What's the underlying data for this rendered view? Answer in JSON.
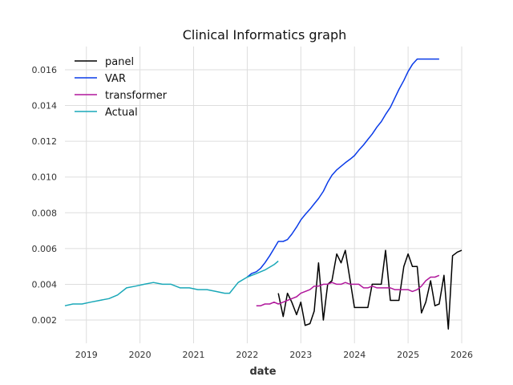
{
  "chart_data": {
    "type": "line",
    "title": "Clinical Informatics graph",
    "xlabel": "date",
    "ylabel": "",
    "x_axis": "date",
    "xlim": [
      2018.6,
      2026.0
    ],
    "ylim": [
      0.0007,
      0.0173
    ],
    "xticks": [
      "2019",
      "2020",
      "2021",
      "2022",
      "2023",
      "2024",
      "2025",
      "2026"
    ],
    "yticks": [
      "0.002",
      "0.004",
      "0.006",
      "0.008",
      "0.010",
      "0.012",
      "0.014",
      "0.016"
    ],
    "grid": true,
    "legend_placement": "top-left",
    "series": [
      {
        "name": "panel",
        "color": "#000000",
        "x": [
          2022.58,
          2022.67,
          2022.75,
          2022.83,
          2022.92,
          2023.0,
          2023.08,
          2023.17,
          2023.25,
          2023.33,
          2023.42,
          2023.5,
          2023.58,
          2023.67,
          2023.75,
          2023.83,
          2023.92,
          2024.0,
          2024.08,
          2024.17,
          2024.25,
          2024.33,
          2024.42,
          2024.5,
          2024.58,
          2024.67,
          2024.75,
          2024.83,
          2024.92,
          2025.0,
          2025.08,
          2025.17,
          2025.25,
          2025.33,
          2025.42,
          2025.5,
          2025.58,
          2025.67,
          2025.75,
          2025.83,
          2025.92,
          2026.0
        ],
        "y": [
          0.0035,
          0.0022,
          0.0035,
          0.003,
          0.0023,
          0.003,
          0.0017,
          0.0018,
          0.0025,
          0.0052,
          0.002,
          0.004,
          0.0042,
          0.0057,
          0.0052,
          0.0059,
          0.0042,
          0.0027,
          0.0027,
          0.0027,
          0.0027,
          0.004,
          0.004,
          0.004,
          0.0059,
          0.0031,
          0.0031,
          0.0031,
          0.005,
          0.0057,
          0.005,
          0.005,
          0.0024,
          0.003,
          0.0042,
          0.0028,
          0.0029,
          0.0045,
          0.0015,
          0.0056,
          0.0058,
          0.0059
        ]
      },
      {
        "name": "VAR",
        "color": "#0a3be8",
        "x": [
          2022.0,
          2022.08,
          2022.17,
          2022.25,
          2022.33,
          2022.42,
          2022.5,
          2022.58,
          2022.67,
          2022.75,
          2022.83,
          2022.92,
          2023.0,
          2023.08,
          2023.17,
          2023.25,
          2023.33,
          2023.42,
          2023.5,
          2023.58,
          2023.67,
          2023.75,
          2023.83,
          2023.92,
          2024.0,
          2024.08,
          2024.17,
          2024.25,
          2024.33,
          2024.42,
          2024.5,
          2024.58,
          2024.67,
          2024.75,
          2024.83,
          2024.92,
          2025.0,
          2025.08,
          2025.17,
          2025.25,
          2025.33,
          2025.42,
          2025.5,
          2025.58
        ],
        "y": [
          0.0044,
          0.0046,
          0.0047,
          0.0049,
          0.0052,
          0.0056,
          0.006,
          0.0064,
          0.0064,
          0.0065,
          0.0068,
          0.0072,
          0.0076,
          0.0079,
          0.0082,
          0.0085,
          0.0088,
          0.0092,
          0.0097,
          0.0101,
          0.0104,
          0.0106,
          0.0108,
          0.011,
          0.0112,
          0.0115,
          0.0118,
          0.0121,
          0.0124,
          0.0128,
          0.0131,
          0.0135,
          0.0139,
          0.0144,
          0.0149,
          0.0154,
          0.0159,
          0.0163,
          0.0166,
          0.0166,
          0.0166,
          0.0166,
          0.0166,
          0.0166
        ]
      },
      {
        "name": "transformer",
        "color": "#b0179b",
        "x": [
          2022.17,
          2022.25,
          2022.33,
          2022.42,
          2022.5,
          2022.58,
          2022.67,
          2022.75,
          2022.83,
          2022.92,
          2023.0,
          2023.08,
          2023.17,
          2023.25,
          2023.33,
          2023.42,
          2023.5,
          2023.58,
          2023.67,
          2023.75,
          2023.83,
          2023.92,
          2024.0,
          2024.08,
          2024.17,
          2024.25,
          2024.33,
          2024.42,
          2024.5,
          2024.58,
          2024.67,
          2024.75,
          2024.83,
          2024.92,
          2025.0,
          2025.08,
          2025.17,
          2025.25,
          2025.33,
          2025.42,
          2025.5,
          2025.58
        ],
        "y": [
          0.0028,
          0.0028,
          0.0029,
          0.0029,
          0.003,
          0.0029,
          0.003,
          0.0031,
          0.0032,
          0.0033,
          0.0035,
          0.0036,
          0.0037,
          0.0039,
          0.0039,
          0.004,
          0.004,
          0.0041,
          0.004,
          0.004,
          0.0041,
          0.004,
          0.004,
          0.004,
          0.0038,
          0.0038,
          0.0039,
          0.0038,
          0.0038,
          0.0038,
          0.0038,
          0.0037,
          0.0037,
          0.0037,
          0.0037,
          0.0036,
          0.0037,
          0.0039,
          0.0042,
          0.0044,
          0.0044,
          0.0045
        ]
      },
      {
        "name": "Actual",
        "color": "#1aa8b8",
        "x": [
          2018.6,
          2018.75,
          2018.92,
          2019.08,
          2019.25,
          2019.42,
          2019.58,
          2019.75,
          2019.92,
          2020.08,
          2020.25,
          2020.42,
          2020.58,
          2020.75,
          2020.92,
          2021.08,
          2021.25,
          2021.42,
          2021.58,
          2021.67,
          2021.83,
          2022.0,
          2022.17,
          2022.33,
          2022.5,
          2022.58
        ],
        "y": [
          0.0028,
          0.0029,
          0.0029,
          0.003,
          0.0031,
          0.0032,
          0.0034,
          0.0038,
          0.0039,
          0.004,
          0.0041,
          0.004,
          0.004,
          0.0038,
          0.0038,
          0.0037,
          0.0037,
          0.0036,
          0.0035,
          0.0035,
          0.0041,
          0.0044,
          0.0046,
          0.0048,
          0.0051,
          0.0053
        ]
      }
    ]
  }
}
